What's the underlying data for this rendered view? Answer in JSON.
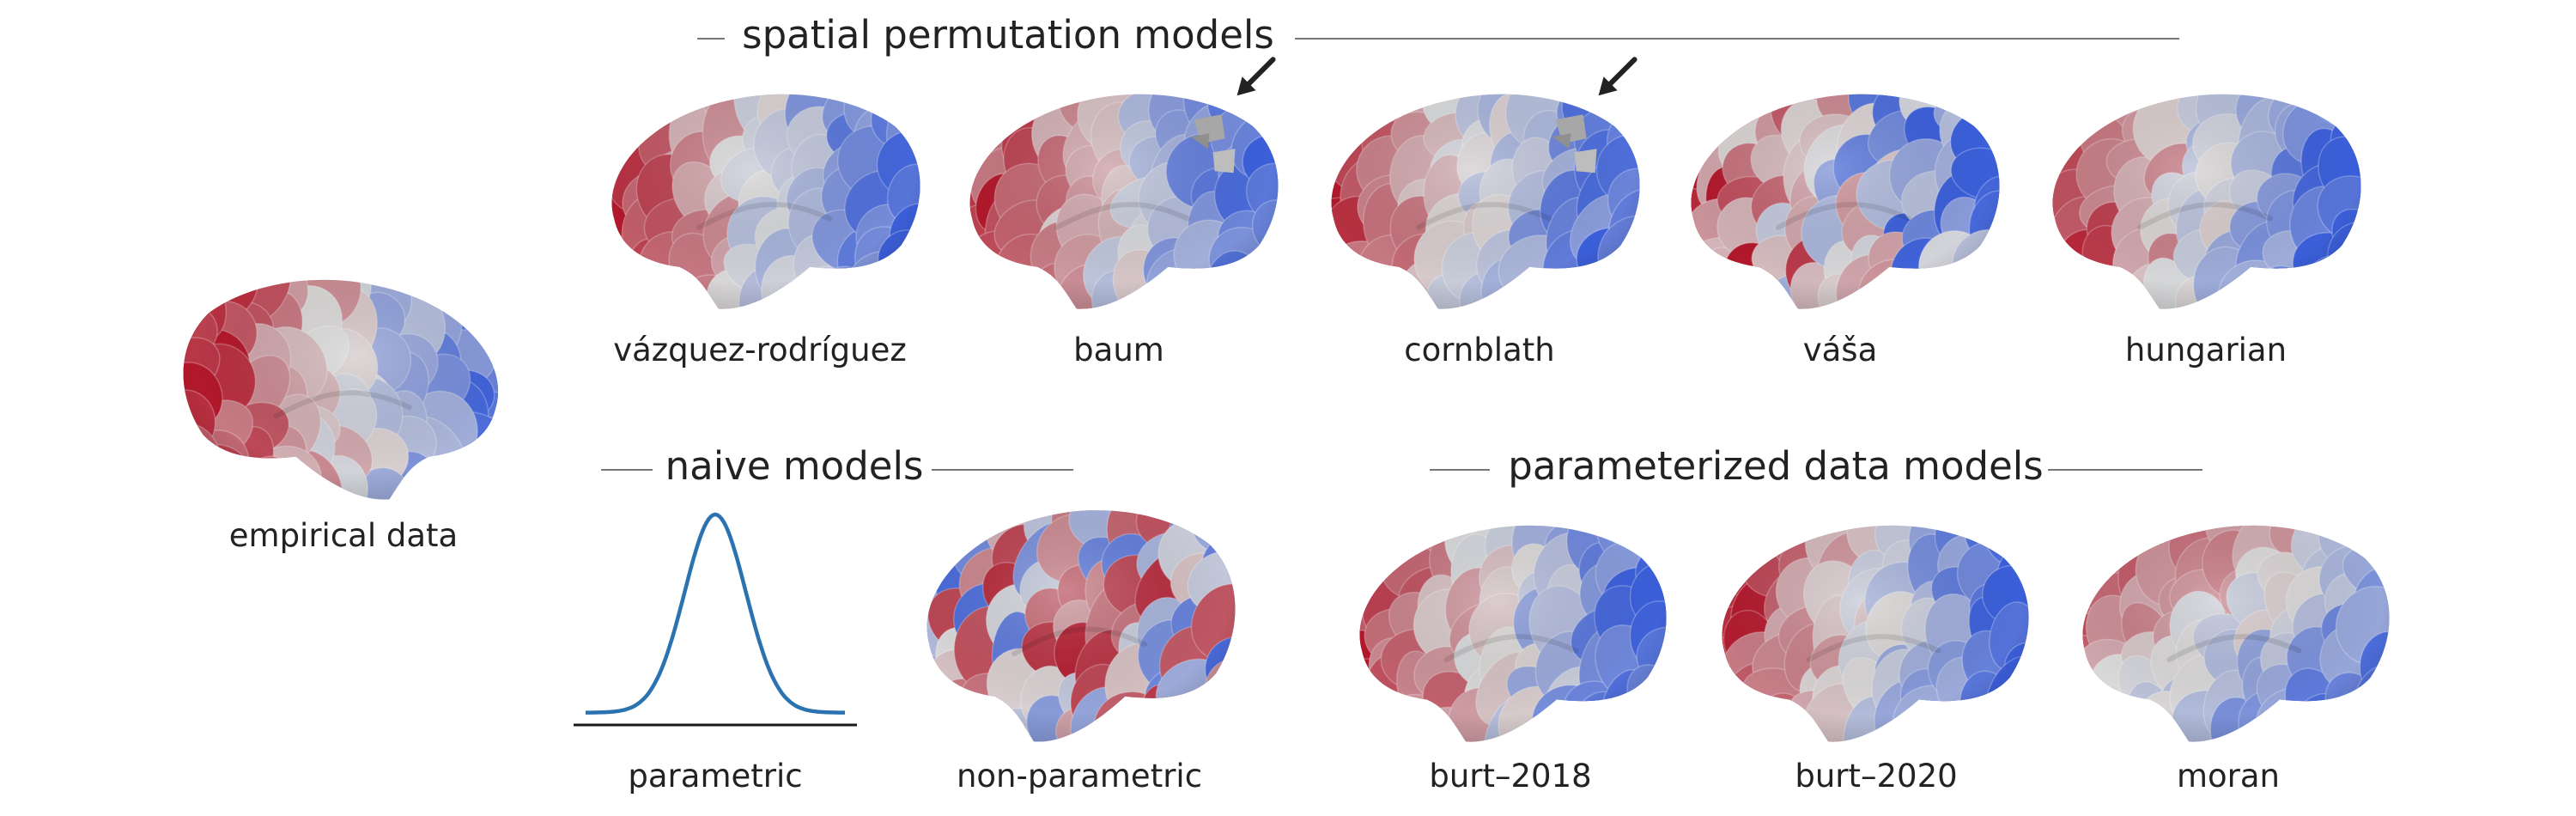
{
  "sections": {
    "spatial": "spatial permutation models",
    "naive": "naive models",
    "parameterized": "parameterized data models"
  },
  "panels": {
    "empirical": "empirical data",
    "vazquez": "vázquez-rodríguez",
    "baum": "baum",
    "cornblath": "cornblath",
    "vasa": "váša",
    "hungarian": "hungarian",
    "parametric": "parametric",
    "nonparametric": "non-parametric",
    "burt2018": "burt–2018",
    "burt2020": "burt–2020",
    "moran": "moran"
  },
  "colors": {
    "red": "#b2182b",
    "blue": "#3b5fd9",
    "neutral": "#d9d9d9",
    "curve": "#2b73b0",
    "arrow": "#222222"
  }
}
